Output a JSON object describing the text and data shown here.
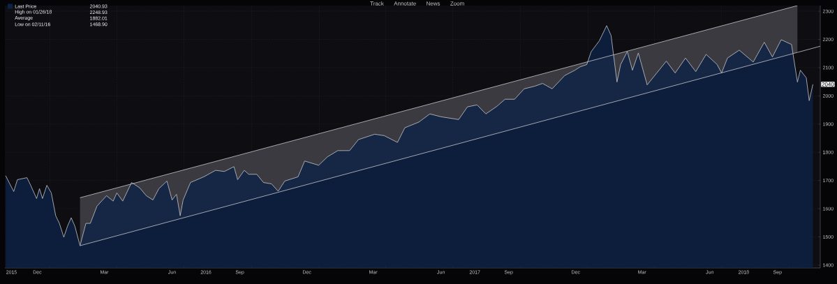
{
  "chart_data": {
    "type": "area",
    "series": [
      {
        "name": "Last Price",
        "color": "#0b2346",
        "x": [
          "2015-11-02",
          "2015-11-13",
          "2015-11-18",
          "2015-12-01",
          "2015-12-06",
          "2015-12-14",
          "2015-12-18",
          "2015-12-22",
          "2015-12-28",
          "2016-01-03",
          "2016-01-09",
          "2016-01-14",
          "2016-01-20",
          "2016-01-25",
          "2016-01-30",
          "2016-02-04",
          "2016-02-11",
          "2016-02-19",
          "2016-02-25",
          "2016-03-05",
          "2016-03-18",
          "2016-03-27",
          "2016-04-01",
          "2016-04-09",
          "2016-04-21",
          "2016-05-02",
          "2016-05-11",
          "2016-05-20",
          "2016-05-28",
          "2016-06-08",
          "2016-06-15",
          "2016-06-21",
          "2016-06-26",
          "2016-06-30",
          "2016-07-10",
          "2016-07-28",
          "2016-08-13",
          "2016-08-25",
          "2016-09-07",
          "2016-09-12",
          "2016-09-21",
          "2016-09-27",
          "2016-10-08",
          "2016-10-17",
          "2016-10-28",
          "2016-11-06",
          "2016-11-15",
          "2016-12-03",
          "2016-12-12",
          "2016-12-31",
          "2017-01-12",
          "2017-01-26",
          "2017-02-11",
          "2017-02-23",
          "2017-03-17",
          "2017-03-30",
          "2017-04-17",
          "2017-04-27",
          "2017-05-16",
          "2017-05-31",
          "2017-06-15",
          "2017-07-09",
          "2017-07-21",
          "2017-08-03",
          "2017-08-15",
          "2017-08-30",
          "2017-09-10",
          "2017-09-23",
          "2017-10-06",
          "2017-10-20",
          "2017-10-31",
          "2017-11-13",
          "2017-11-30",
          "2017-12-14",
          "2017-12-21",
          "2017-12-30",
          "2018-01-05",
          "2018-01-16",
          "2018-01-26",
          "2018-02-01",
          "2018-02-09",
          "2018-02-14",
          "2018-02-23",
          "2018-03-02",
          "2018-03-10",
          "2018-03-22",
          "2018-04-04",
          "2018-04-17",
          "2018-04-29",
          "2018-05-13",
          "2018-05-27",
          "2018-06-10",
          "2018-06-25",
          "2018-07-01",
          "2018-07-09",
          "2018-07-25",
          "2018-08-13",
          "2018-08-28",
          "2018-09-08",
          "2018-09-20",
          "2018-10-04",
          "2018-10-12",
          "2018-10-16",
          "2018-10-24",
          "2018-10-28",
          "2018-11-02"
        ],
        "values": [
          1717,
          1661,
          1703,
          1710,
          1683,
          1636,
          1671,
          1636,
          1683,
          1656,
          1575,
          1548,
          1499,
          1538,
          1568,
          1538,
          1468.9,
          1548,
          1548,
          1609,
          1646,
          1627,
          1656,
          1627,
          1693,
          1674,
          1646,
          1631,
          1671,
          1698,
          1631,
          1651,
          1575,
          1631,
          1693,
          1713,
          1736,
          1732,
          1749,
          1703,
          1736,
          1722,
          1722,
          1693,
          1688,
          1662,
          1698,
          1713,
          1769,
          1754,
          1784,
          1806,
          1806,
          1845,
          1864,
          1859,
          1835,
          1887,
          1907,
          1936,
          1926,
          1916,
          1961,
          1968,
          1936,
          1963,
          1988,
          1988,
          2025,
          2034,
          2044,
          2025,
          2072,
          2091,
          2103,
          2111,
          2157,
          2195,
          2248.93,
          2214,
          2049,
          2111,
          2157,
          2091,
          2152,
          2039,
          2081,
          2123,
          2081,
          2134,
          2086,
          2147,
          2111,
          2081,
          2134,
          2162,
          2120,
          2190,
          2138,
          2199,
          2182,
          2049,
          2091,
          2064,
          1983,
          2040.93
        ]
      },
      {
        "type": "line",
        "color": "#c8c8cc",
        "x": [
          "2016-02-11",
          "2018-10-12"
        ],
        "values": [
          1639,
          2320
        ]
      },
      {
        "type": "line",
        "color": "#c8c8cc",
        "x": [
          "2016-02-11",
          "2018-10-12",
          "2018-11-12"
        ],
        "values": [
          1468.9,
          2154,
          2176
        ],
        "lower": [
          1468.9,
          2154,
          null
        ],
        "upper": [
          1639,
          2320,
          null
        ]
      }
    ],
    "xlim": [
      "2015-11-01",
      "2018-11-12"
    ],
    "ylim": [
      1390,
      2320
    ],
    "yticks": [
      1400,
      1500,
      1600,
      1700,
      1800,
      1900,
      2000,
      2100,
      2200,
      2300
    ],
    "xticks": [
      {
        "value": "2016-01-01",
        "label": null
      },
      {
        "value": "2016-04-01",
        "label": null
      },
      {
        "value": "2016-07-01",
        "label": null
      },
      {
        "value": "2016-10-01",
        "label": null
      },
      {
        "value": "2017-01-01",
        "label": null
      },
      {
        "value": "2017-04-01",
        "label": null
      },
      {
        "value": "2017-07-01",
        "label": null
      },
      {
        "value": "2017-10-01",
        "label": null
      },
      {
        "value": "2018-01-01",
        "label": null
      },
      {
        "value": "2018-04-01",
        "label": null
      },
      {
        "value": "2018-07-01",
        "label": null
      },
      {
        "value": "2018-10-01",
        "label": null
      },
      {
        "value": "2015-12-15",
        "label": "Dec"
      },
      {
        "value": "2016-03-15",
        "label": "Mar"
      },
      {
        "value": "2016-06-15",
        "label": "Jun"
      },
      {
        "value": "2016-09-15",
        "label": "Sep"
      },
      {
        "value": "2016-12-15",
        "label": "Dec"
      },
      {
        "value": "2017-03-15",
        "label": "Mar"
      },
      {
        "value": "2017-06-15",
        "label": "Jun"
      },
      {
        "value": "2017-09-15",
        "label": "Sep"
      },
      {
        "value": "2017-12-15",
        "label": "Dec"
      },
      {
        "value": "2018-03-15",
        "label": "Mar"
      },
      {
        "value": "2018-06-15",
        "label": "Jun"
      },
      {
        "value": "2018-09-15",
        "label": "Sep"
      },
      {
        "value": "2015-11-10",
        "label": "2015"
      },
      {
        "value": "2016-07-31",
        "label": "2016"
      },
      {
        "value": "2017-07-31",
        "label": "2017"
      },
      {
        "value": "2018-07-31",
        "label": "2018"
      }
    ],
    "grid": true,
    "legend": "top left",
    "annotations": [
      "2040.93",
      "High on 01/26/18",
      "2248.93",
      "Average",
      "1882.01",
      "Low on 02/11/16",
      "1468.90",
      "Track",
      "Annotate",
      "News",
      "Zoom",
      {
        "text": "2040",
        "x": "2018-11-02",
        "y": 2040.93
      }
    ]
  }
}
